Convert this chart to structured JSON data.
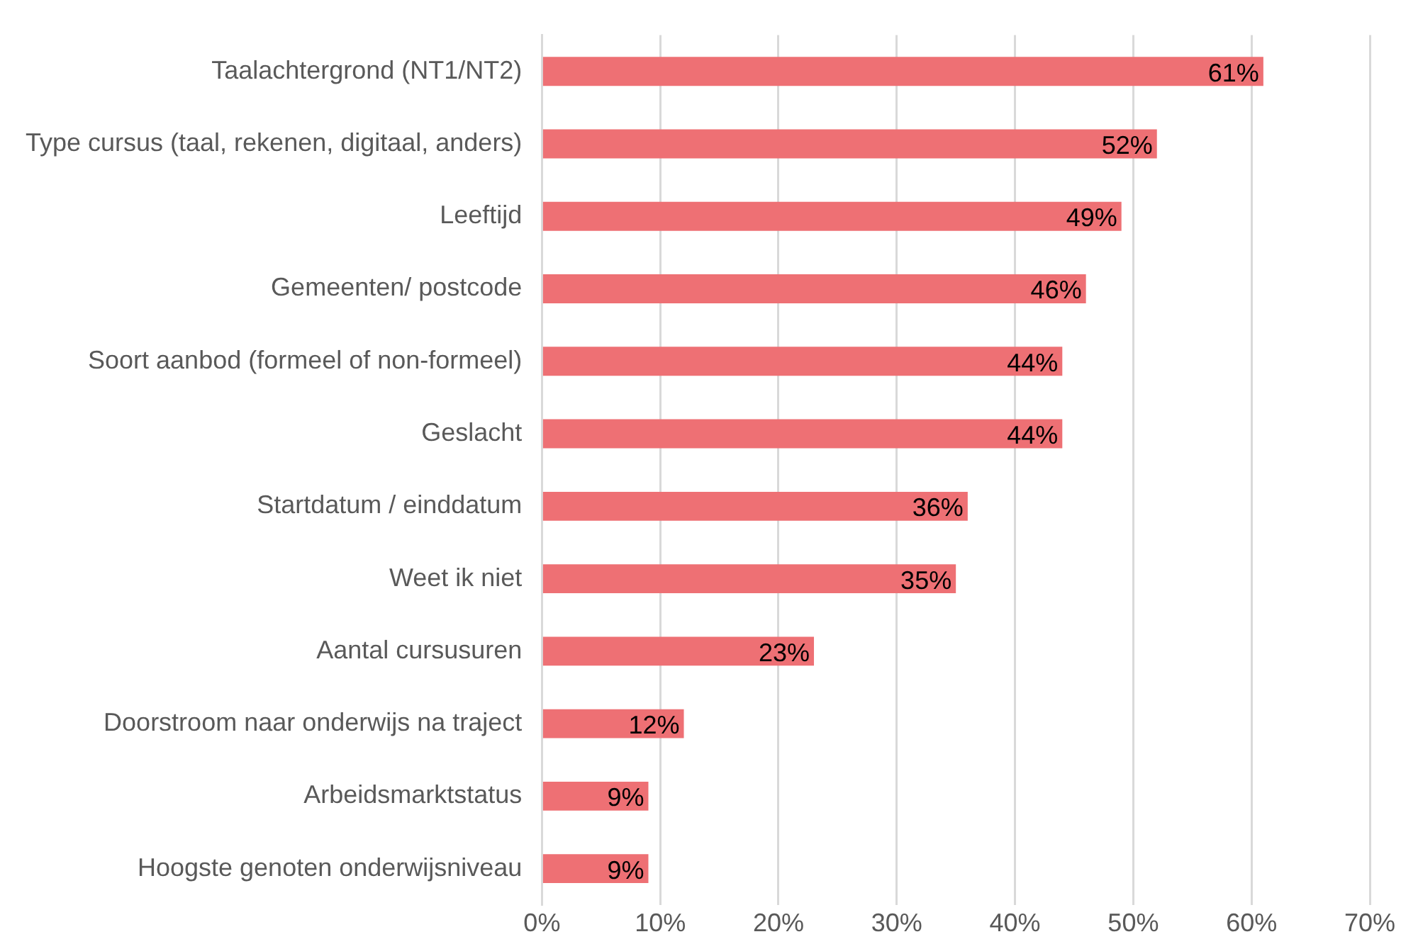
{
  "chart_data": {
    "type": "bar",
    "orientation": "horizontal",
    "categories": [
      "Taalachtergrond (NT1/NT2)",
      "Type cursus (taal, rekenen, digitaal, anders)",
      "Leeftijd",
      "Gemeenten/ postcode",
      "Soort aanbod (formeel of non-formeel)",
      "Geslacht",
      "Startdatum / einddatum",
      "Weet ik niet",
      "Aantal cursusuren",
      "Doorstroom naar onderwijs na traject",
      "Arbeidsmarktstatus",
      "Hoogste genoten onderwijsniveau"
    ],
    "values": [
      61,
      52,
      49,
      46,
      44,
      44,
      36,
      35,
      23,
      12,
      9,
      9
    ],
    "value_labels": [
      "61%",
      "52%",
      "49%",
      "46%",
      "44%",
      "44%",
      "36%",
      "35%",
      "23%",
      "12%",
      "9%",
      "9%"
    ],
    "color": "#ee7074",
    "xlim": [
      0,
      70
    ],
    "xticks": [
      {
        "value": 0,
        "label": "0%"
      },
      {
        "value": 10,
        "label": "10%"
      },
      {
        "value": 20,
        "label": "20%"
      },
      {
        "value": 30,
        "label": "30%"
      },
      {
        "value": 40,
        "label": "40%"
      },
      {
        "value": 50,
        "label": "50%"
      },
      {
        "value": 60,
        "label": "60%"
      },
      {
        "value": 70,
        "label": "70%"
      }
    ],
    "grid": "x",
    "legend": false
  }
}
